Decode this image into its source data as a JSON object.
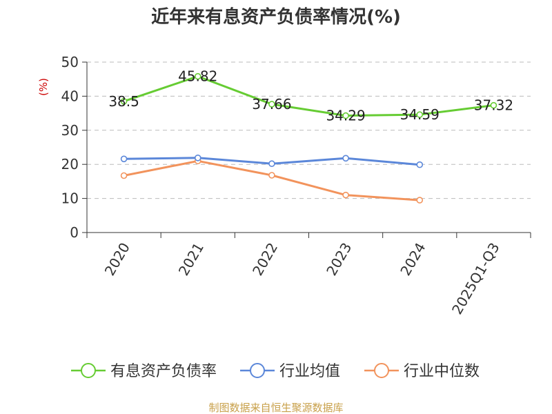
{
  "source_text": "制图数据来自恒生聚源数据库",
  "source_color": "#c8a04a",
  "unit_color": "#cc0000",
  "chart_data": {
    "type": "line",
    "title": "近年来有息资产负债率情况(%)",
    "ylabel": "(%)",
    "xlabel": "",
    "categories": [
      "2020",
      "2021",
      "2022",
      "2023",
      "2024",
      "2025Q1-Q3"
    ],
    "ylim": [
      0,
      50
    ],
    "yticks": [
      0,
      10,
      20,
      30,
      40,
      50
    ],
    "grid": true,
    "legend_position": "bottom",
    "series": [
      {
        "name": "有息资产负债率",
        "color": "#66cc33",
        "values": [
          38.5,
          45.82,
          37.66,
          34.29,
          34.59,
          37.32
        ],
        "labels": [
          "38.5",
          "45.82",
          "37.66",
          "34.29",
          "34.59",
          "37.32"
        ]
      },
      {
        "name": "行业均值",
        "color": "#5b87d9",
        "values": [
          21.6,
          21.9,
          20.2,
          21.8,
          19.9,
          null
        ]
      },
      {
        "name": "行业中位数",
        "color": "#f2935c",
        "values": [
          16.7,
          21.0,
          16.8,
          11.0,
          9.5,
          null
        ]
      }
    ]
  }
}
